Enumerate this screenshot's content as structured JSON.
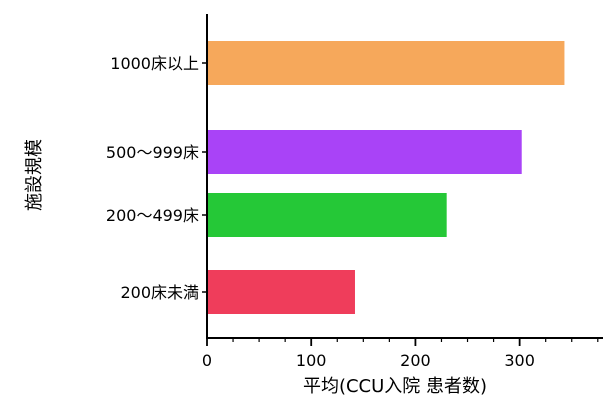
{
  "chart_data": {
    "type": "bar",
    "orientation": "horizontal",
    "categories": [
      "1000床以上",
      "500〜999床",
      "200〜499床",
      "200床未満"
    ],
    "values": [
      343,
      302,
      230,
      142
    ],
    "colors": [
      "#f6a85b",
      "#a943f7",
      "#25c837",
      "#ef3d5b"
    ],
    "xlabel": "平均(CCU入院 患者数)",
    "ylabel": "施設規模",
    "xlim": [
      0,
      380
    ],
    "xticks": [
      0,
      100,
      200,
      300
    ],
    "minor_tick_step": 25,
    "grid": false
  }
}
